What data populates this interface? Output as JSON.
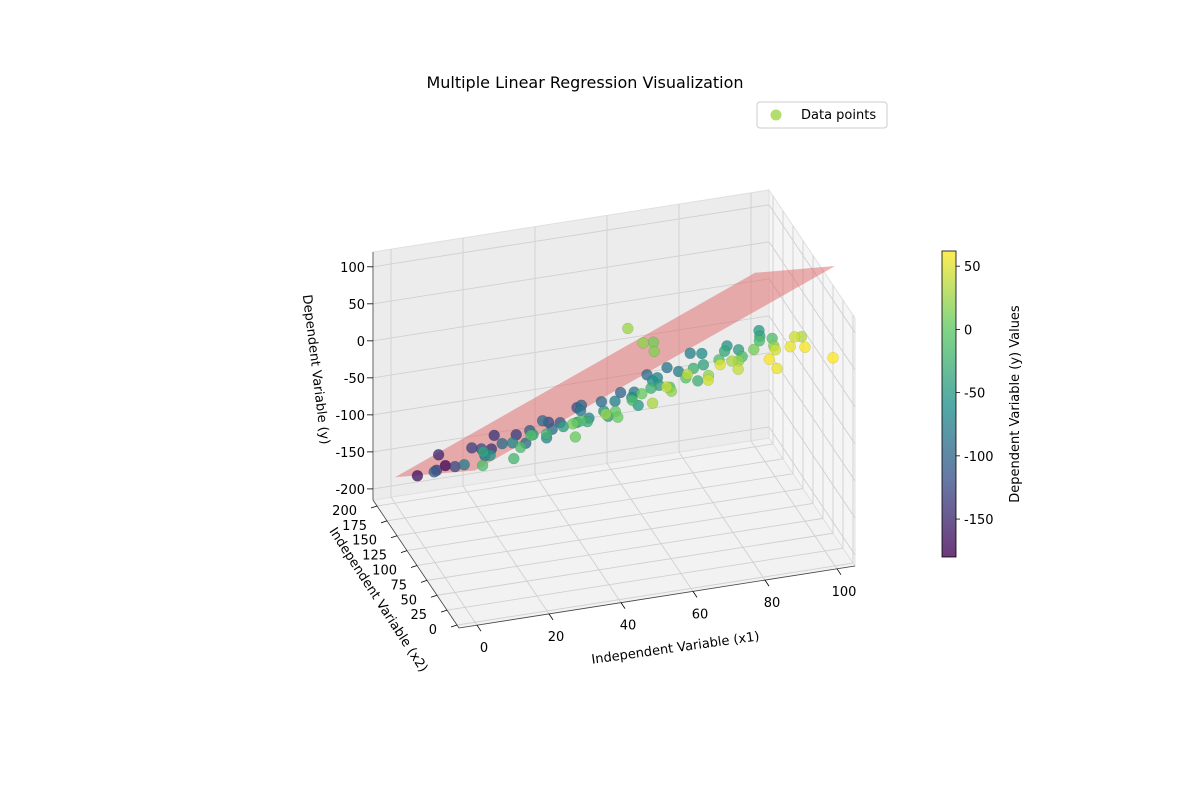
{
  "chart_data": {
    "type": "scatter",
    "title": "Multiple Linear Regression Visualization",
    "xlabel": "Independent Variable (x1)",
    "ylabel": "Independent Variable (x2)",
    "zlabel": "Dependent Variable (y)",
    "colorbar_label": "Dependent Variable (y) Values",
    "legend": {
      "label": "Data points",
      "placement": "top-right"
    },
    "xlim": [
      -5,
      105
    ],
    "ylim": [
      -5,
      210
    ],
    "zlim": [
      -215,
      120
    ],
    "x_ticks": [
      0,
      20,
      40,
      60,
      80,
      100
    ],
    "y_ticks": [
      0,
      25,
      50,
      75,
      100,
      125,
      150,
      175,
      200
    ],
    "z_ticks": [
      -200,
      -150,
      -100,
      -50,
      0,
      50,
      100
    ],
    "colorbar_ticks": [
      -150,
      -100,
      -50,
      0,
      50
    ],
    "colorbar_range": [
      -180,
      62
    ],
    "colormap": [
      "#440154",
      "#3b528b",
      "#21918c",
      "#5ec962",
      "#fde725"
    ],
    "plane_color": "#e06666",
    "regression_plane": {
      "intercept": -10,
      "coef_x1": 2.0,
      "coef_x2": -0.85
    },
    "grid": true,
    "view": {
      "elevation_deg": 20,
      "azimuth_deg": -110
    },
    "points": [
      [
        3,
        8,
        -12
      ],
      [
        6,
        150,
        -135
      ],
      [
        9,
        60,
        -40
      ],
      [
        11,
        190,
        -150
      ],
      [
        13,
        20,
        -20
      ],
      [
        15,
        110,
        -90
      ],
      [
        18,
        170,
        -130
      ],
      [
        20,
        40,
        -10
      ],
      [
        22,
        130,
        -95
      ],
      [
        25,
        80,
        -45
      ],
      [
        27,
        195,
        -140
      ],
      [
        29,
        10,
        5
      ],
      [
        31,
        100,
        -70
      ],
      [
        33,
        160,
        -110
      ],
      [
        35,
        50,
        -10
      ],
      [
        37,
        140,
        -95
      ],
      [
        39,
        70,
        -30
      ],
      [
        41,
        185,
        -125
      ],
      [
        43,
        30,
        5
      ],
      [
        45,
        120,
        -70
      ],
      [
        47,
        90,
        -45
      ],
      [
        49,
        175,
        -100
      ],
      [
        51,
        15,
        30
      ],
      [
        53,
        60,
        5
      ],
      [
        55,
        145,
        -75
      ],
      [
        57,
        105,
        -50
      ],
      [
        59,
        40,
        20
      ],
      [
        61,
        185,
        -100
      ],
      [
        63,
        80,
        -10
      ],
      [
        65,
        125,
        -45
      ],
      [
        67,
        20,
        45
      ],
      [
        69,
        165,
        -70
      ],
      [
        71,
        55,
        20
      ],
      [
        73,
        100,
        -25
      ],
      [
        75,
        195,
        -85
      ],
      [
        77,
        35,
        40
      ],
      [
        79,
        140,
        -40
      ],
      [
        81,
        70,
        20
      ],
      [
        83,
        180,
        -60
      ],
      [
        85,
        10,
        55
      ],
      [
        87,
        115,
        -15
      ],
      [
        89,
        50,
        45
      ],
      [
        91,
        160,
        -45
      ],
      [
        93,
        90,
        15
      ],
      [
        95,
        30,
        60
      ],
      [
        97,
        130,
        -10
      ],
      [
        99,
        75,
        35
      ],
      [
        100,
        190,
        -50
      ],
      [
        2,
        120,
        -110
      ],
      [
        4,
        180,
        -165
      ],
      [
        7,
        90,
        -80
      ],
      [
        10,
        140,
        -125
      ],
      [
        12,
        70,
        -55
      ],
      [
        14,
        200,
        -175
      ],
      [
        16,
        30,
        -15
      ],
      [
        19,
        155,
        -120
      ],
      [
        21,
        95,
        -65
      ],
      [
        24,
        175,
        -140
      ],
      [
        26,
        55,
        -25
      ],
      [
        28,
        125,
        -95
      ],
      [
        30,
        25,
        10
      ],
      [
        32,
        185,
        -135
      ],
      [
        34,
        85,
        -45
      ],
      [
        36,
        155,
        -95
      ],
      [
        38,
        15,
        25
      ],
      [
        40,
        105,
        -60
      ],
      [
        42,
        165,
        -110
      ],
      [
        44,
        45,
        0
      ],
      [
        46,
        150,
        -85
      ],
      [
        48,
        110,
        -55
      ],
      [
        50,
        195,
        -120
      ],
      [
        52,
        75,
        -15
      ],
      [
        54,
        170,
        -95
      ],
      [
        56,
        25,
        40
      ],
      [
        58,
        130,
        -60
      ],
      [
        60,
        100,
        -25
      ],
      [
        62,
        160,
        -80
      ],
      [
        64,
        45,
        35
      ],
      [
        66,
        150,
        -60
      ],
      [
        68,
        85,
        -5
      ],
      [
        70,
        200,
        -95
      ],
      [
        72,
        35,
        50
      ],
      [
        74,
        120,
        -25
      ],
      [
        76,
        175,
        -75
      ],
      [
        78,
        60,
        30
      ],
      [
        80,
        110,
        -10
      ],
      [
        82,
        200,
        -75
      ],
      [
        84,
        20,
        60
      ],
      [
        86,
        150,
        -35
      ],
      [
        88,
        95,
        10
      ],
      [
        90,
        180,
        -55
      ],
      [
        92,
        40,
        55
      ],
      [
        94,
        135,
        -15
      ],
      [
        96,
        65,
        45
      ],
      [
        98,
        170,
        -40
      ],
      [
        100,
        5,
        62
      ],
      [
        60,
        120,
        20
      ],
      [
        62,
        110,
        15
      ],
      [
        58,
        140,
        25
      ],
      [
        64,
        130,
        10
      ]
    ]
  }
}
